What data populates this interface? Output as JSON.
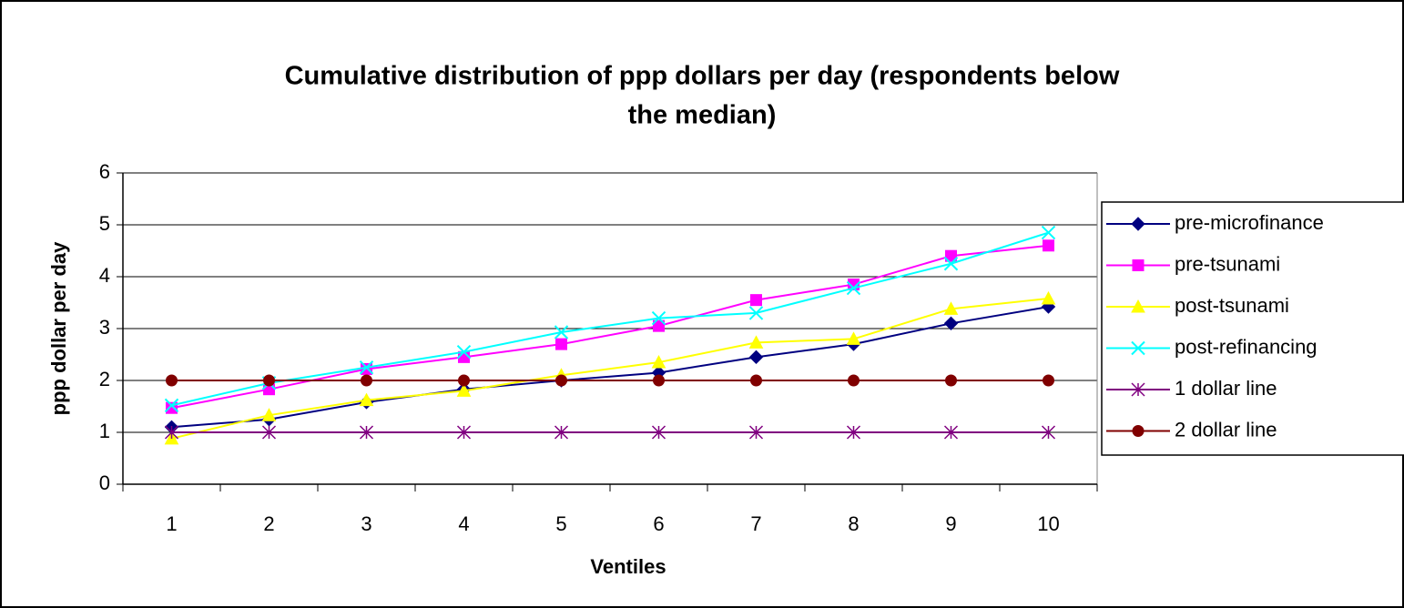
{
  "chart_data": {
    "type": "line",
    "title": [
      "Cumulative distribution of ppp dollars per day (respondents below",
      "the median)"
    ],
    "x_label": "Ventiles",
    "y_label": "ppp dollar per day",
    "categories": [
      1,
      2,
      3,
      4,
      5,
      6,
      7,
      8,
      9,
      10
    ],
    "series": [
      {
        "name": "pre-microfinance",
        "color": "#000080",
        "marker": "diamond",
        "values": [
          1.1,
          1.25,
          1.58,
          1.83,
          2.0,
          2.15,
          2.45,
          2.7,
          3.1,
          3.42
        ]
      },
      {
        "name": "pre-tsunami",
        "color": "#ff00ff",
        "marker": "square",
        "values": [
          1.47,
          1.83,
          2.22,
          2.45,
          2.7,
          3.05,
          3.55,
          3.85,
          4.4,
          4.6
        ]
      },
      {
        "name": "post-tsunami",
        "color": "#ffff00",
        "marker": "triangle",
        "values": [
          0.88,
          1.33,
          1.62,
          1.8,
          2.1,
          2.35,
          2.73,
          2.8,
          3.38,
          3.58
        ]
      },
      {
        "name": "post-refinancing",
        "color": "#00ffff",
        "marker": "x",
        "values": [
          1.52,
          1.95,
          2.25,
          2.55,
          2.93,
          3.2,
          3.3,
          3.78,
          4.25,
          4.85
        ]
      },
      {
        "name": "1 dollar line",
        "color": "#800080",
        "marker": "asterisk",
        "values": [
          1,
          1,
          1,
          1,
          1,
          1,
          1,
          1,
          1,
          1
        ]
      },
      {
        "name": "2 dollar line",
        "color": "#800000",
        "marker": "circle",
        "values": [
          2,
          2,
          2,
          2,
          2,
          2,
          2,
          2,
          2,
          2
        ]
      }
    ],
    "ylim": [
      0,
      6
    ],
    "yticks": [
      0,
      1,
      2,
      3,
      4,
      5,
      6
    ],
    "grid": true,
    "legend": "right"
  }
}
